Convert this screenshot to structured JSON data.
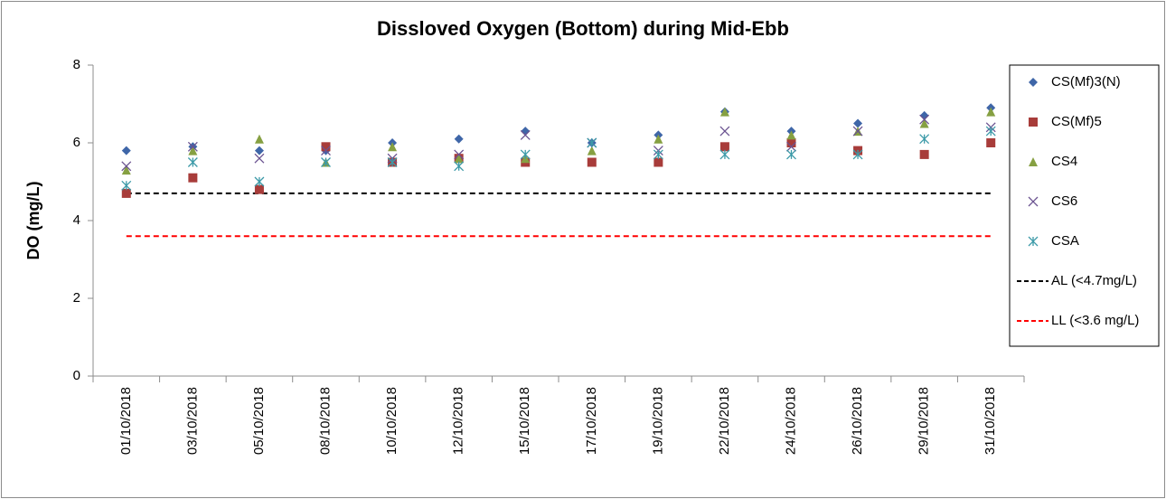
{
  "chart_data": {
    "type": "scatter",
    "title": "Dissloved Oxygen (Bottom) during Mid-Ebb",
    "y_label": "DO (mg/L)",
    "categories": [
      "01/10/2018",
      "03/10/2018",
      "05/10/2018",
      "08/10/2018",
      "10/10/2018",
      "12/10/2018",
      "15/10/2018",
      "17/10/2018",
      "19/10/2018",
      "22/10/2018",
      "24/10/2018",
      "26/10/2018",
      "29/10/2018",
      "31/10/2018"
    ],
    "series": [
      {
        "name": "CS(Mf)3(N)",
        "color": "#3f66a8",
        "marker": "diamond",
        "values": [
          5.8,
          5.9,
          5.8,
          5.8,
          6.0,
          6.1,
          6.3,
          6.0,
          6.2,
          6.8,
          6.3,
          6.5,
          6.7,
          6.9
        ]
      },
      {
        "name": "CS(Mf)5",
        "color": "#a83c3a",
        "marker": "square",
        "values": [
          4.7,
          5.1,
          4.8,
          5.9,
          5.5,
          5.6,
          5.5,
          5.5,
          5.5,
          5.9,
          6.0,
          5.8,
          5.7,
          6.0
        ]
      },
      {
        "name": "CS4",
        "color": "#86a042",
        "marker": "triangle",
        "values": [
          5.3,
          5.8,
          6.1,
          5.5,
          5.9,
          5.6,
          5.6,
          5.8,
          6.1,
          6.8,
          6.2,
          6.3,
          6.5,
          6.8
        ]
      },
      {
        "name": "CS6",
        "color": "#6a5290",
        "marker": "x",
        "values": [
          5.4,
          5.9,
          5.6,
          5.8,
          5.6,
          5.7,
          6.2,
          6.0,
          5.8,
          6.3,
          5.9,
          6.3,
          6.6,
          6.4
        ]
      },
      {
        "name": "CSA",
        "color": "#3c9aa8",
        "marker": "asterisk",
        "values": [
          4.9,
          5.5,
          5.0,
          5.5,
          5.5,
          5.4,
          5.7,
          6.0,
          5.7,
          5.7,
          5.7,
          5.7,
          6.1,
          6.3
        ]
      }
    ],
    "reference_lines": [
      {
        "name": "AL (<4.7mg/L)",
        "value": 4.7,
        "color": "#000000"
      },
      {
        "name": "LL (<3.6 mg/L)",
        "value": 3.6,
        "color": "#ff0000"
      }
    ],
    "ylim": [
      0,
      8
    ],
    "yticks": [
      0,
      2,
      4,
      6,
      8
    ],
    "legend": "right"
  }
}
